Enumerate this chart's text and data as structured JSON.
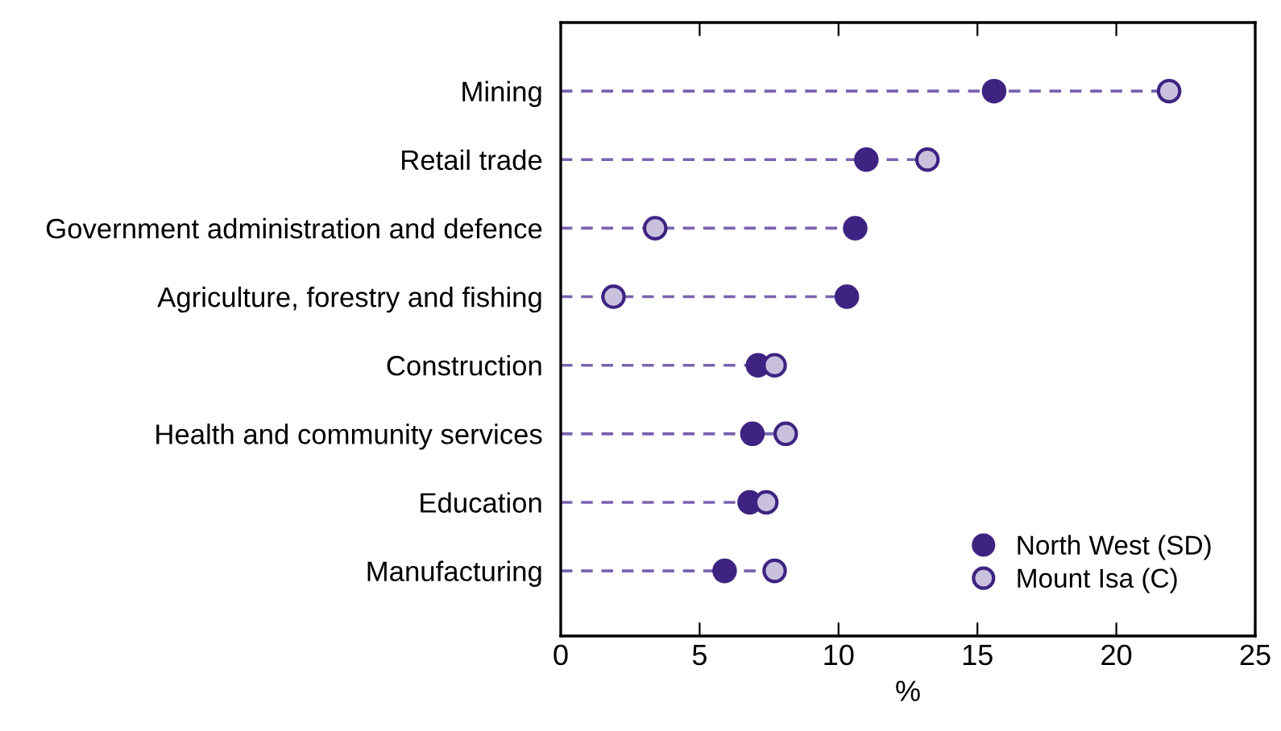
{
  "chart_data": {
    "type": "lollipop",
    "orientation": "horizontal",
    "xlabel": "%",
    "categories": [
      "Mining",
      "Retail trade",
      "Government administration and defence",
      "Agriculture, forestry and fishing",
      "Construction",
      "Health and community services",
      "Education",
      "Manufacturing"
    ],
    "series": [
      {
        "name": "North West (SD)",
        "color": "#3f2382",
        "values": [
          15.6,
          11.0,
          10.6,
          10.3,
          7.1,
          6.9,
          6.8,
          5.9
        ]
      },
      {
        "name": "Mount Isa (C)",
        "color": "#c9c0de",
        "values": [
          21.9,
          13.2,
          3.4,
          1.9,
          7.7,
          8.1,
          7.4,
          7.7
        ]
      }
    ],
    "xlim": [
      0,
      25
    ],
    "xticks": [
      0,
      5,
      10,
      15,
      20,
      25
    ],
    "grid": false,
    "legend": "bottom right",
    "marker": "circle",
    "line_style": "dashed"
  }
}
